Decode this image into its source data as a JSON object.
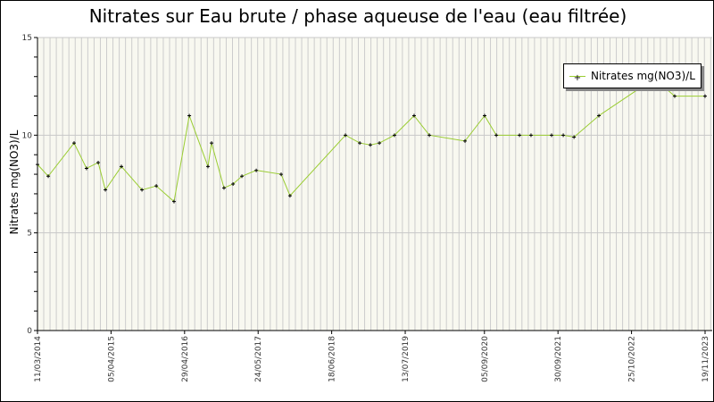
{
  "chart_data": {
    "type": "line",
    "title": "Nitrates sur Eau brute / phase aqueuse de l'eau (eau filtrée)",
    "xlabel": "",
    "ylabel": "Nitrates mg(NO3)/L",
    "ylim": [
      0,
      15
    ],
    "yticks": [
      "0",
      "5",
      "10",
      "15"
    ],
    "xlim": [
      "2014-03-11",
      "2023-11-19"
    ],
    "xticks": [
      {
        "date": "2014-03-11",
        "label": "11/03/2014"
      },
      {
        "date": "2015-04-05",
        "label": "05/04/2015"
      },
      {
        "date": "2016-04-29",
        "label": "29/04/2016"
      },
      {
        "date": "2017-05-24",
        "label": "24/05/2017"
      },
      {
        "date": "2018-06-18",
        "label": "18/06/2018"
      },
      {
        "date": "2019-07-13",
        "label": "13/07/2019"
      },
      {
        "date": "2020-09-05",
        "label": "05/09/2020"
      },
      {
        "date": "2021-09-30",
        "label": "30/09/2021"
      },
      {
        "date": "2022-10-25",
        "label": "25/10/2022"
      },
      {
        "date": "2023-11-19",
        "label": "19/11/2023"
      }
    ],
    "grid": true,
    "legend": {
      "position": "top-right",
      "entries": [
        "Nitrates mg(NO3)/L"
      ]
    },
    "series": [
      {
        "name": "Nitrates mg(NO3)/L",
        "color": "#9acd32",
        "x": [
          "2014-03-11",
          "2014-05-07",
          "2014-09-21",
          "2014-11-26",
          "2015-01-27",
          "2015-03-06",
          "2015-05-30",
          "2015-09-16",
          "2015-12-01",
          "2016-03-04",
          "2016-05-24",
          "2016-08-31",
          "2016-09-19",
          "2016-11-24",
          "2017-01-11",
          "2017-02-27",
          "2017-05-14",
          "2017-09-23",
          "2017-11-09",
          "2018-08-30",
          "2018-11-14",
          "2019-01-09",
          "2019-02-26",
          "2019-05-17",
          "2019-08-29",
          "2019-11-18",
          "2020-05-25",
          "2020-09-06",
          "2020-11-07",
          "2021-03-10",
          "2021-05-10",
          "2021-08-27",
          "2021-10-28",
          "2021-12-24",
          "2022-05-05",
          "2023-02-22",
          "2023-06-11",
          "2023-11-19"
        ],
        "values": [
          8.5,
          7.9,
          9.6,
          8.3,
          8.6,
          7.2,
          8.4,
          7.2,
          7.4,
          6.6,
          11.0,
          8.4,
          9.6,
          7.3,
          7.5,
          7.9,
          8.2,
          8.0,
          6.9,
          10.0,
          9.6,
          9.5,
          9.6,
          10.0,
          11.0,
          10.0,
          9.7,
          11.0,
          10.0,
          10.0,
          10.0,
          10.0,
          10.0,
          9.9,
          11.0,
          12.9,
          12.0,
          12.0
        ]
      }
    ]
  }
}
